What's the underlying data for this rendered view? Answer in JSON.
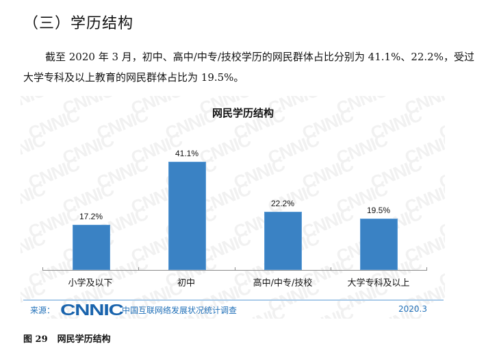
{
  "section": {
    "title": "（三）学历结构"
  },
  "paragraph": "截至 2020 年 3 月，初中、高中/中专/技校学历的网民群体占比分别为 41.1%、22.2%，受过大学专科及以上教育的网民群体占比为 19.5%。",
  "watermark_text": "CNNIC",
  "chart": {
    "title": "网民学历结构",
    "bar_color": "#3a82c4",
    "bars": [
      {
        "category": "小学及以下",
        "value": 17.2,
        "label": "17.2%"
      },
      {
        "category": "初中",
        "value": 41.1,
        "label": "41.1%"
      },
      {
        "category": "高中/中专/技校",
        "value": 22.2,
        "label": "22.2%"
      },
      {
        "category": "大学专科及以上",
        "value": 19.5,
        "label": "19.5%"
      }
    ]
  },
  "chart_data": {
    "type": "bar",
    "title": "网民学历结构",
    "categories": [
      "小学及以下",
      "初中",
      "高中/中专/技校",
      "大学专科及以上"
    ],
    "values": [
      17.2,
      41.1,
      22.2,
      19.5
    ],
    "value_labels": [
      "17.2%",
      "41.1%",
      "22.2%",
      "19.5%"
    ],
    "xlabel": "",
    "ylabel": "",
    "unit": "%",
    "ylim": [
      0,
      45
    ],
    "grid": false,
    "legend": null
  },
  "source": {
    "label": "来源：",
    "logo": "CNNIC",
    "survey": "中国互联网络发展状况统计调查",
    "date": "2020.3"
  },
  "figure_caption": {
    "number": "图 29",
    "title": "网民学历结构"
  }
}
